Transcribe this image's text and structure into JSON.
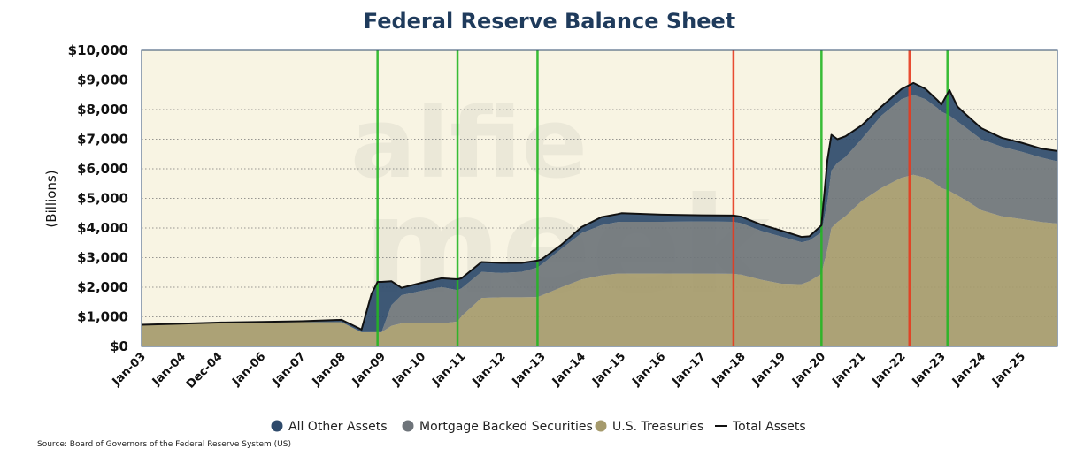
{
  "chart_data": {
    "type": "area",
    "title": "Federal Reserve Balance Sheet",
    "ylabel": "(Billions)",
    "xlabel": "",
    "ylim": [
      0,
      10000
    ],
    "yticks": [
      {
        "value": 0,
        "label": "$0"
      },
      {
        "value": 1000,
        "label": "$1,000"
      },
      {
        "value": 2000,
        "label": "$2,000"
      },
      {
        "value": 3000,
        "label": "$3,000"
      },
      {
        "value": 4000,
        "label": "$4,000"
      },
      {
        "value": 5000,
        "label": "$5,000"
      },
      {
        "value": 6000,
        "label": "$6,000"
      },
      {
        "value": 7000,
        "label": "$7,000"
      },
      {
        "value": 8000,
        "label": "$8,000"
      },
      {
        "value": 9000,
        "label": "$9,000"
      },
      {
        "value": 10000,
        "label": "$10,000"
      }
    ],
    "xlim": [
      2003.0,
      2025.9
    ],
    "xticks": [
      {
        "value": 2003.0,
        "label": "Jan-03"
      },
      {
        "value": 2004.0,
        "label": "Jan-04"
      },
      {
        "value": 2004.92,
        "label": "Dec-04"
      },
      {
        "value": 2006.0,
        "label": "Jan-06"
      },
      {
        "value": 2007.0,
        "label": "Jan-07"
      },
      {
        "value": 2008.0,
        "label": "Jan-08"
      },
      {
        "value": 2009.0,
        "label": "Jan-09"
      },
      {
        "value": 2010.0,
        "label": "Jan-10"
      },
      {
        "value": 2011.0,
        "label": "Jan-11"
      },
      {
        "value": 2012.0,
        "label": "Jan-12"
      },
      {
        "value": 2013.0,
        "label": "Jan-13"
      },
      {
        "value": 2014.0,
        "label": "Jan-14"
      },
      {
        "value": 2015.0,
        "label": "Jan-15"
      },
      {
        "value": 2016.0,
        "label": "Jan-16"
      },
      {
        "value": 2017.0,
        "label": "Jan-17"
      },
      {
        "value": 2018.0,
        "label": "Jan-18"
      },
      {
        "value": 2019.0,
        "label": "Jan-19"
      },
      {
        "value": 2020.0,
        "label": "Jan-20"
      },
      {
        "value": 2021.0,
        "label": "Jan-21"
      },
      {
        "value": 2022.0,
        "label": "Jan-22"
      },
      {
        "value": 2023.0,
        "label": "Jan-23"
      },
      {
        "value": 2024.0,
        "label": "Jan-24"
      },
      {
        "value": 2025.0,
        "label": "Jan-25"
      }
    ],
    "grid": true,
    "legend_position": "bottom",
    "legend": [
      {
        "name": "All Other Assets",
        "kind": "area",
        "color": "#2e4a6b"
      },
      {
        "name": "Mortgage Backed Securities",
        "kind": "area",
        "color": "#6e747a"
      },
      {
        "name": "U.S. Treasuries",
        "kind": "area",
        "color": "#a59a6c"
      },
      {
        "name": "Total Assets",
        "kind": "line",
        "color": "#111111"
      }
    ],
    "x": [
      2003.0,
      2004.0,
      2005.0,
      2006.0,
      2007.0,
      2008.0,
      2008.5,
      2008.75,
      2008.9,
      2009.0,
      2009.25,
      2009.5,
      2010.0,
      2010.5,
      2010.9,
      2011.0,
      2011.5,
      2012.0,
      2012.5,
      2012.9,
      2013.0,
      2013.5,
      2014.0,
      2014.5,
      2014.9,
      2015.0,
      2016.0,
      2017.0,
      2017.8,
      2018.0,
      2018.5,
      2019.0,
      2019.5,
      2019.7,
      2020.0,
      2020.15,
      2020.25,
      2020.4,
      2020.6,
      2021.0,
      2021.5,
      2022.0,
      2022.3,
      2022.6,
      2022.9,
      2023.0,
      2023.2,
      2023.4,
      2023.6,
      2024.0,
      2024.5,
      2025.0,
      2025.5,
      2025.9
    ],
    "series": [
      {
        "name": "U.S. Treasuries",
        "values": [
          730,
          760,
          790,
          810,
          820,
          820,
          480,
          480,
          480,
          480,
          700,
          780,
          780,
          780,
          840,
          1020,
          1640,
          1660,
          1660,
          1670,
          1720,
          2000,
          2260,
          2400,
          2460,
          2460,
          2460,
          2460,
          2450,
          2420,
          2250,
          2120,
          2100,
          2200,
          2450,
          3300,
          4000,
          4200,
          4400,
          4900,
          5350,
          5700,
          5800,
          5700,
          5450,
          5350,
          5250,
          5100,
          4950,
          4600,
          4400,
          4300,
          4200,
          4150
        ]
      },
      {
        "name": "Mortgage Backed Securities",
        "values": [
          0,
          0,
          0,
          0,
          0,
          0,
          0,
          0,
          0,
          0,
          700,
          950,
          1100,
          1230,
          1060,
          940,
          880,
          820,
          860,
          1000,
          1050,
          1300,
          1570,
          1700,
          1740,
          1750,
          1750,
          1760,
          1760,
          1740,
          1650,
          1590,
          1420,
          1380,
          1400,
          1600,
          1950,
          2000,
          2000,
          2100,
          2450,
          2650,
          2700,
          2650,
          2600,
          2580,
          2550,
          2500,
          2450,
          2390,
          2350,
          2280,
          2180,
          2100
        ]
      },
      {
        "name": "All Other Assets",
        "values": [
          0,
          10,
          20,
          20,
          30,
          80,
          90,
          1300,
          1700,
          1700,
          800,
          250,
          270,
          290,
          370,
          340,
          330,
          340,
          300,
          230,
          170,
          140,
          200,
          270,
          270,
          290,
          240,
          210,
          210,
          220,
          210,
          200,
          180,
          140,
          240,
          1400,
          1200,
          800,
          700,
          460,
          300,
          340,
          400,
          350,
          270,
          240,
          860,
          500,
          450,
          380,
          300,
          300,
          300,
          350
        ]
      }
    ],
    "total_assets": {
      "name": "Total Assets",
      "values": [
        730,
        770,
        810,
        830,
        850,
        900,
        570,
        1780,
        2180,
        2180,
        2200,
        1980,
        2150,
        2300,
        2270,
        2300,
        2850,
        2820,
        2820,
        2900,
        2940,
        3440,
        4030,
        4370,
        4470,
        4500,
        4450,
        4430,
        4420,
        4380,
        4110,
        3910,
        3700,
        3720,
        4090,
        6300,
        7150,
        7000,
        7100,
        7460,
        8100,
        8690,
        8900,
        8700,
        8320,
        8170,
        8660,
        8100,
        7850,
        7370,
        7050,
        6880,
        6680,
        6600
      ]
    },
    "event_lines": [
      {
        "x": 2008.9,
        "color": "#22b622"
      },
      {
        "x": 2010.9,
        "color": "#22b622"
      },
      {
        "x": 2012.9,
        "color": "#22b622"
      },
      {
        "x": 2017.8,
        "color": "#e53a1e"
      },
      {
        "x": 2020.0,
        "color": "#22b622"
      },
      {
        "x": 2022.2,
        "color": "#e53a1e"
      },
      {
        "x": 2023.15,
        "color": "#22b622"
      }
    ],
    "colors": {
      "plot_background": "#f8f4e3",
      "title": "#1f3b5c",
      "axis": "#2e4a6b"
    },
    "source": "Source: Board of Governors of the Federal Reserve System (US)"
  }
}
